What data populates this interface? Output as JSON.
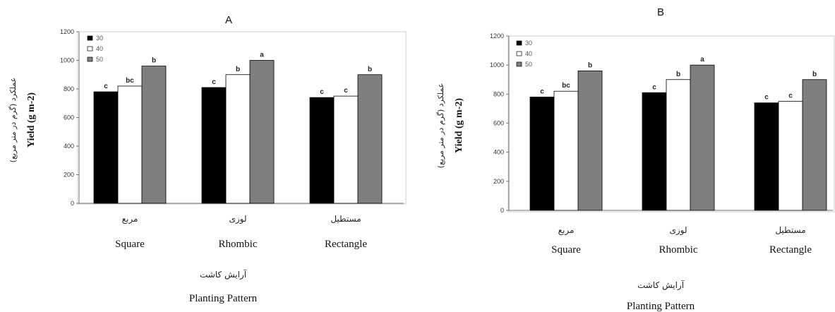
{
  "colors": {
    "series_30": "#000000",
    "series_40": "#ffffff",
    "series_50": "#7f7f7f",
    "axis": "#777777",
    "frame": "#cccccc"
  },
  "chart_data": [
    {
      "type": "bar",
      "panel": "A",
      "title": "A",
      "categories": [
        "Square",
        "Rhombic",
        "Rectangle"
      ],
      "categories_fa": [
        "مربع",
        "لوزی",
        "مستطیل"
      ],
      "xlabel": "Planting Pattern",
      "xlabel_fa": "آرایش کاشت",
      "ylabel": "Yield (g m-2)",
      "ylabel_fa": "عملکرد (گرم در متر مربع)",
      "ylim": [
        0,
        1200
      ],
      "yticks": [
        "0",
        "200",
        "400",
        "600",
        "800",
        "1000",
        "1200"
      ],
      "grid": false,
      "legend_position": "top-left",
      "series": [
        {
          "name": "30",
          "values": [
            780,
            810,
            740
          ],
          "labels": [
            "c",
            "c",
            "c"
          ]
        },
        {
          "name": "40",
          "values": [
            820,
            900,
            750
          ],
          "labels": [
            "bc",
            "b",
            "c"
          ]
        },
        {
          "name": "50",
          "values": [
            960,
            1000,
            900
          ],
          "labels": [
            "b",
            "a",
            "b"
          ]
        }
      ]
    },
    {
      "type": "bar",
      "panel": "B",
      "title": "B",
      "categories": [
        "Square",
        "Rhombic",
        "Rectangle"
      ],
      "categories_fa": [
        "مربع",
        "لوزی",
        "مستطیل"
      ],
      "xlabel": "Planting Pattern",
      "xlabel_fa": "آرایش کاشت",
      "ylabel": "Yield (g m-2)",
      "ylabel_fa": "عملکرد (گرم در متر مربع)",
      "ylim": [
        0,
        1200
      ],
      "yticks": [
        "0",
        "200",
        "400",
        "600",
        "800",
        "1000",
        "1200"
      ],
      "grid": false,
      "legend_position": "top-left",
      "series": [
        {
          "name": "30",
          "values": [
            780,
            810,
            740
          ],
          "labels": [
            "c",
            "c",
            "c"
          ]
        },
        {
          "name": "40",
          "values": [
            820,
            900,
            750
          ],
          "labels": [
            "bc",
            "b",
            "c"
          ]
        },
        {
          "name": "50",
          "values": [
            960,
            1000,
            900
          ],
          "labels": [
            "b",
            "a",
            "b"
          ]
        }
      ]
    }
  ]
}
